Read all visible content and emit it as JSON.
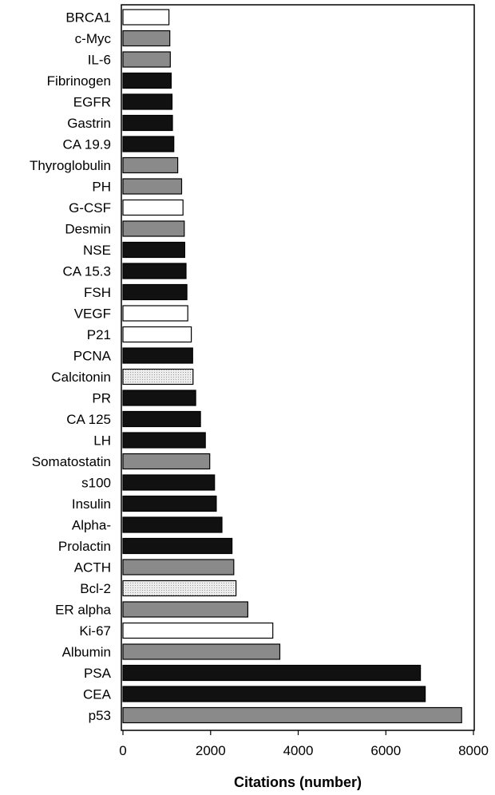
{
  "chart_data": {
    "type": "bar",
    "orientation": "horizontal",
    "xlabel": "Citations (number)",
    "ylabel": "",
    "xlim": [
      0,
      8000
    ],
    "xticks": [
      0,
      2000,
      4000,
      6000,
      8000
    ],
    "grid": false,
    "categories": [
      "BRCA1",
      "c-Myc",
      "IL-6",
      "Fibrinogen",
      "EGFR",
      "Gastrin",
      "CA 19.9",
      "Thyroglobulin",
      "PH",
      "G-CSF",
      "Desmin",
      "NSE",
      "CA 15.3",
      "FSH",
      "VEGF",
      "P21",
      "PCNA",
      "Calcitonin",
      "PR",
      "CA 125",
      "LH",
      "Somatostatin",
      "s100",
      "Insulin",
      "Alpha-",
      "Prolactin",
      "ACTH",
      "Bcl-2",
      "ER alpha",
      "Ki-67",
      "Albumin",
      "PSA",
      "CEA",
      "p53"
    ],
    "values": [
      1050,
      1070,
      1080,
      1100,
      1120,
      1130,
      1160,
      1250,
      1340,
      1370,
      1400,
      1410,
      1440,
      1460,
      1480,
      1560,
      1590,
      1600,
      1660,
      1770,
      1880,
      1980,
      2090,
      2130,
      2260,
      2490,
      2530,
      2580,
      2850,
      3420,
      3580,
      6790,
      6900,
      7730
    ],
    "fills": [
      "white",
      "gray",
      "gray",
      "black",
      "black",
      "black",
      "black",
      "gray",
      "gray",
      "white",
      "gray",
      "black",
      "black",
      "black",
      "white",
      "white",
      "black",
      "dotted",
      "black",
      "black",
      "black",
      "gray",
      "black",
      "black",
      "black",
      "black",
      "gray",
      "dotted",
      "gray",
      "white",
      "gray",
      "black",
      "black",
      "gray"
    ]
  },
  "style": {
    "colors": {
      "black": "#111111",
      "gray": "#8a8a8a",
      "white": "#ffffff",
      "dotted": "#e4e4e4",
      "stroke": "#000000"
    }
  }
}
